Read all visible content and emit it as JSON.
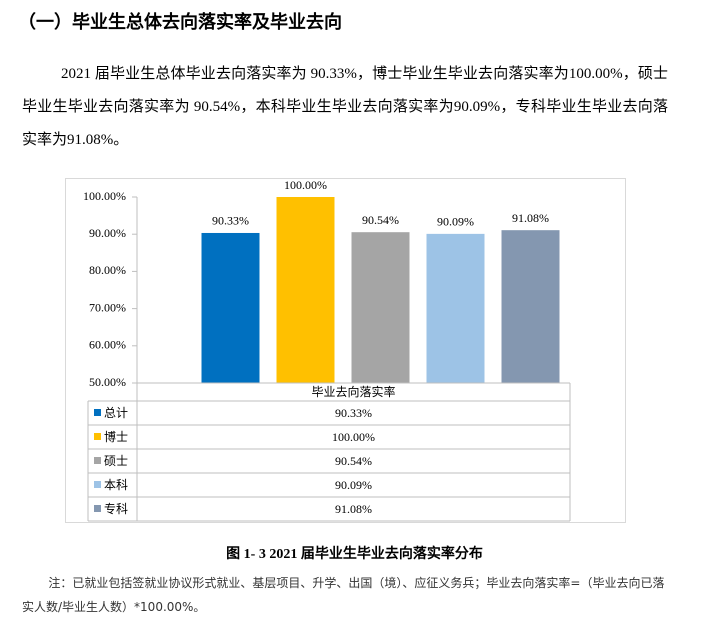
{
  "header": {
    "title": "（一）毕业生总体去向落实率及毕业去向"
  },
  "paragraph": "2021 届毕业生总体毕业去向落实率为 90.33%，博士毕业生毕业去向落实率为100.00%，硕士毕业生毕业去向落实率为 90.54%，本科毕业生毕业去向落实率为90.09%，专科毕业生毕业去向落实率为91.08%。",
  "chart_data": {
    "type": "bar",
    "categories": [
      "毕业去向落实率"
    ],
    "series": [
      {
        "name": "总计",
        "color": "#0070c0",
        "values": [
          90.33
        ],
        "value_labels": [
          "90.33%"
        ]
      },
      {
        "name": "博士",
        "color": "#ffc000",
        "values": [
          100
        ],
        "value_labels": [
          "100.00%"
        ]
      },
      {
        "name": "硕士",
        "color": "#a5a5a5",
        "values": [
          90.54
        ],
        "value_labels": [
          "90.54%"
        ]
      },
      {
        "name": "本科",
        "color": "#9dc3e6",
        "values": [
          90.09
        ],
        "value_labels": [
          "90.09%"
        ]
      },
      {
        "name": "专科",
        "color": "#8497b0",
        "values": [
          91.08
        ],
        "value_labels": [
          "91.08%"
        ]
      }
    ],
    "ylim": [
      50,
      100
    ],
    "yticks": [
      {
        "value": 50,
        "label": "50.00%"
      },
      {
        "value": 60,
        "label": "60.00%"
      },
      {
        "value": 70,
        "label": "70.00%"
      },
      {
        "value": 80,
        "label": "80.00%"
      },
      {
        "value": 90,
        "label": "90.00%"
      },
      {
        "value": 100,
        "label": "100.00%"
      }
    ],
    "grid": false
  },
  "caption": "图 1- 3 2021 届毕业生毕业去向落实率分布",
  "note": "注：已就业包括签就业协议形式就业、基层项目、升学、出国（境）、应征义务兵；毕业去向落实率=（毕业去向已落实人数/毕业生人数）*100.00%。"
}
